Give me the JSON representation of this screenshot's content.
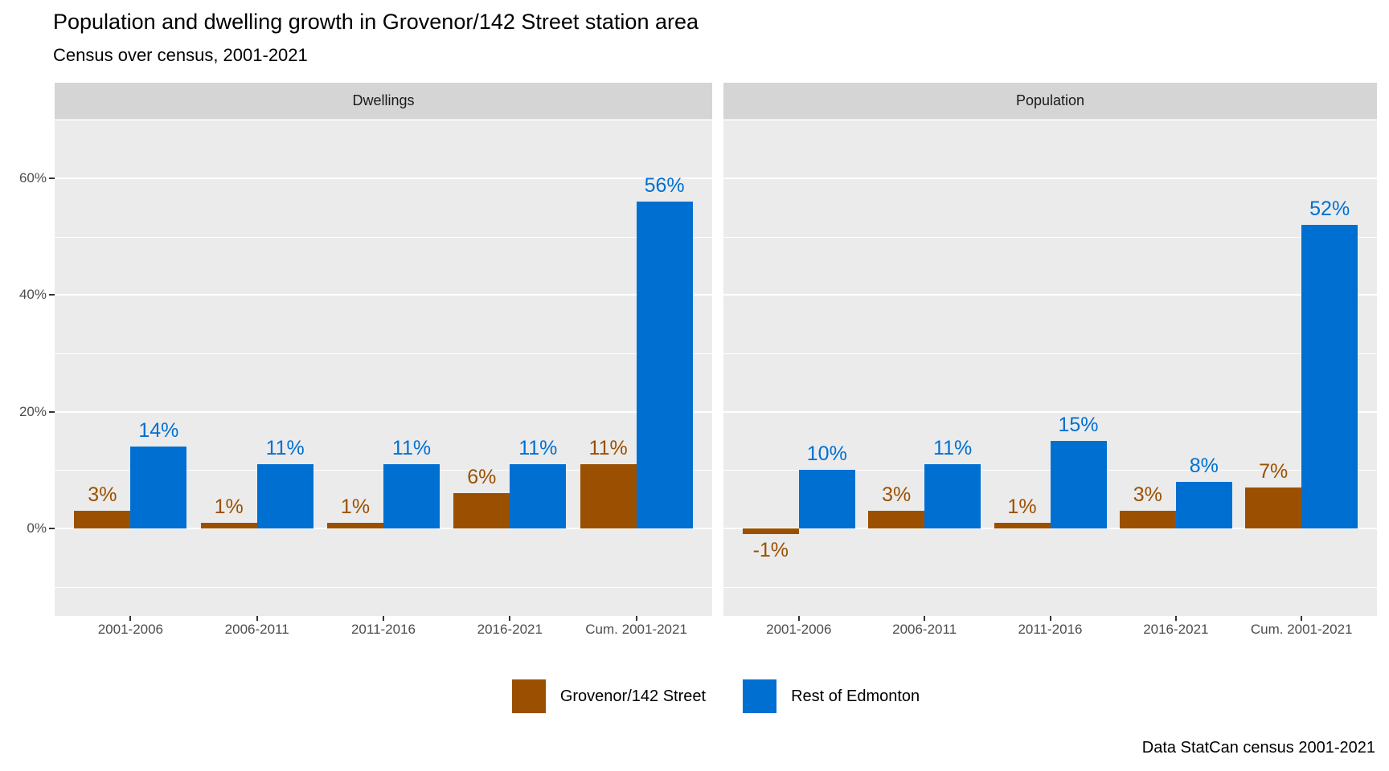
{
  "title": "Population and dwelling growth in Grovenor/142 Street station area",
  "subtitle": "Census over census, 2001-2021",
  "caption": "Data StatCan census 2001-2021",
  "legend": {
    "items": [
      {
        "label": "Grovenor/142 Street",
        "color": "#9A5000"
      },
      {
        "label": "Rest of Edmonton",
        "color": "#006FD2"
      }
    ]
  },
  "colors": {
    "background": "#FFFFFF",
    "panel_background": "#EBEBEB",
    "strip_background": "#D5D5D5",
    "gridline": "#FFFFFF",
    "axis_text": "#4D4D4D",
    "strip_text": "#1A1A1A",
    "tick_mark": "#333333",
    "grovenor_brown": "#9A5000",
    "edmonton_blue": "#006FD2"
  },
  "chart_data": {
    "type": "bar",
    "layout_hint": {
      "faceted": true,
      "grid": true,
      "legend_position": "bottom-center",
      "bar_mode": "dodged",
      "y_range": [
        -15,
        70.2
      ]
    },
    "categories": [
      "2001-2006",
      "2006-2011",
      "2011-2016",
      "2016-2021",
      "Cum. 2001-2021"
    ],
    "y_axis": {
      "tick_values": [
        0,
        20,
        40,
        60
      ],
      "tick_labels": [
        "0%",
        "20%",
        "40%",
        "60%"
      ],
      "minor_tick_values": [
        -10,
        10,
        30,
        50,
        70
      ],
      "unit": "percent"
    },
    "facets": [
      {
        "title": "Dwellings",
        "series": [
          {
            "name": "Grovenor/142 Street",
            "color": "#9A5000",
            "values": [
              3,
              1,
              1,
              6,
              11
            ],
            "labels": [
              "3%",
              "1%",
              "1%",
              "6%",
              "11%"
            ]
          },
          {
            "name": "Rest of Edmonton",
            "color": "#006FD2",
            "values": [
              14,
              11,
              11,
              11,
              56
            ],
            "labels": [
              "14%",
              "11%",
              "11%",
              "11%",
              "56%"
            ]
          }
        ]
      },
      {
        "title": "Population",
        "series": [
          {
            "name": "Grovenor/142 Street",
            "color": "#9A5000",
            "values": [
              -1,
              3,
              1,
              3,
              7
            ],
            "labels": [
              "-1%",
              "3%",
              "1%",
              "3%",
              "7%"
            ]
          },
          {
            "name": "Rest of Edmonton",
            "color": "#006FD2",
            "values": [
              10,
              11,
              15,
              8,
              52
            ],
            "labels": [
              "10%",
              "11%",
              "15%",
              "8%",
              "52%"
            ]
          }
        ]
      }
    ]
  }
}
